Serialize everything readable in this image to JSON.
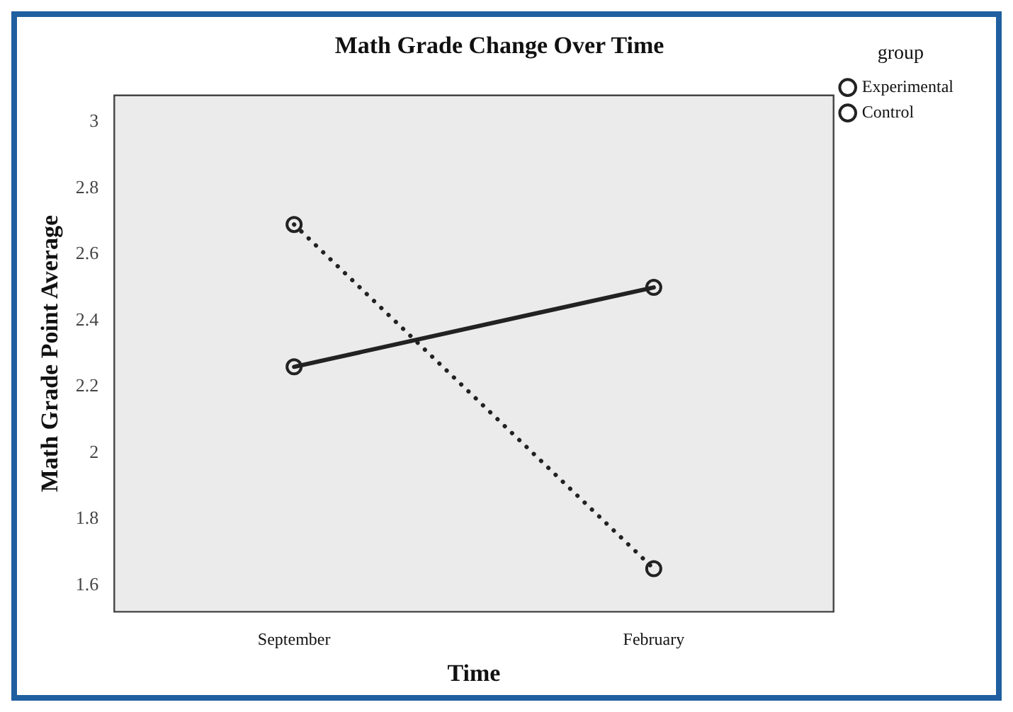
{
  "chart_data": {
    "type": "line",
    "title": "Math Grade Change Over Time",
    "xlabel": "Time",
    "ylabel": "Math Grade Point Average",
    "legend_title": "group",
    "categories": [
      "September",
      "February"
    ],
    "series": [
      {
        "name": "Experimental",
        "color": "#222222",
        "values": [
          2.26,
          2.5
        ],
        "line_style": "solid"
      },
      {
        "name": "Control",
        "color": "#222222",
        "values": [
          2.69,
          1.65
        ],
        "line_style": "dotted"
      }
    ],
    "ylim": [
      1.52,
      3.08
    ],
    "yticks": [
      1.6,
      1.8,
      2,
      2.2,
      2.4,
      2.6,
      2.8,
      3
    ],
    "grid": false,
    "legend": "top right",
    "marker": "circle"
  }
}
